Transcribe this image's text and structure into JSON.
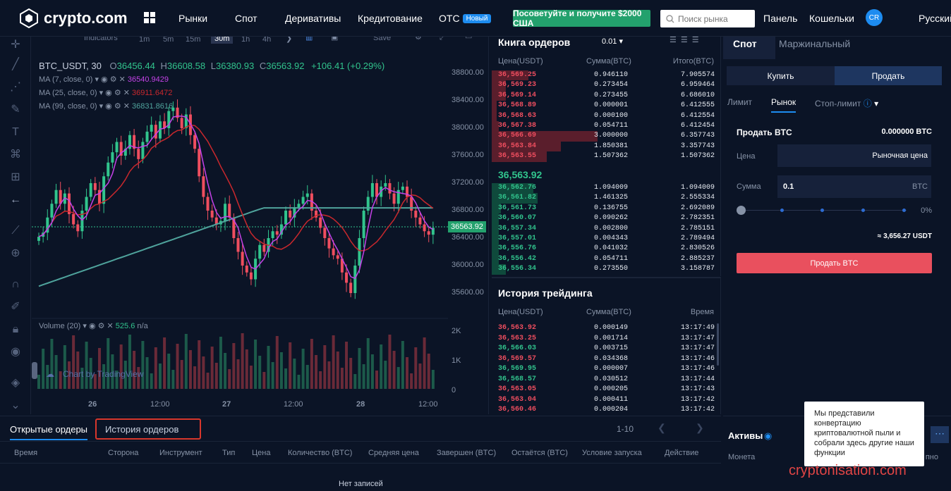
{
  "brand": {
    "name": "crypto.com"
  },
  "nav": {
    "items": [
      "Рынки",
      "Спот",
      "Деривативы",
      "Кредитование",
      "OTC"
    ],
    "otc_badge": "Новый",
    "promo": "Посоветуйте и получите $2000 США",
    "search_placeholder": "Поиск рынка",
    "dashboard": "Панель",
    "wallets": "Кошельки",
    "avatar": "CR",
    "language": "Русский"
  },
  "chart_toolbar": {
    "indicators": "Indicators",
    "intervals": [
      "1m",
      "5m",
      "15m",
      "30m",
      "1h",
      "4h"
    ],
    "save": "Save"
  },
  "chart_legend": {
    "symbol": "BTC_USDT, 30",
    "o_label": "O",
    "o": "36456.44",
    "h_label": "H",
    "h": "36608.58",
    "l_label": "L",
    "l": "36380.93",
    "c_label": "C",
    "c": "36563.92",
    "change": "+106.41 (+0.29%)",
    "ma7_label": "MA (7, close, 0)",
    "ma7": "36540.9429",
    "ma25_label": "MA (25, close, 0)",
    "ma25": "36911.6472",
    "ma99_label": "MA (99, close, 0)",
    "ma99": "36831.8616",
    "volume_label": "Volume (20)",
    "volume": "525.6",
    "volume_na": "n/a",
    "watermark": "Chart by TradingView"
  },
  "colors": {
    "up": "#31c48d",
    "down": "#ef4e5f",
    "ma7": "#c542e8",
    "ma25": "#c9282d",
    "ma99": "#4fa39c",
    "accent": "#1d8cf0"
  },
  "chart_data": {
    "type": "candlestick",
    "y_ticks": [
      "38800.00",
      "38400.00",
      "38000.00",
      "37600.00",
      "37200.00",
      "36800.00",
      "36400.00",
      "36000.00",
      "35600.00"
    ],
    "y_range": [
      35400,
      39000
    ],
    "x_ticks": [
      "26",
      "12:00",
      "27",
      "12:00",
      "28",
      "12:00"
    ],
    "volume_ticks": [
      "2K",
      "1K",
      "0"
    ],
    "last_price": "36563.92"
  },
  "orderbook": {
    "title": "Книга ордеров",
    "precision": "0.01",
    "headers": [
      "Цена(USDT)",
      "Сумма(BTC)",
      "Итого(BTC)"
    ],
    "asks": [
      {
        "p": "36,569.25",
        "a": "0.946110",
        "t": "7.905574",
        "d": 0.16
      },
      {
        "p": "36,569.23",
        "a": "0.273454",
        "t": "6.959464",
        "d": 0.06
      },
      {
        "p": "36,569.14",
        "a": "0.273455",
        "t": "6.686010",
        "d": 0.06
      },
      {
        "p": "36,568.89",
        "a": "0.000001",
        "t": "6.412555",
        "d": 0.02
      },
      {
        "p": "36,568.63",
        "a": "0.000100",
        "t": "6.412554",
        "d": 0.02
      },
      {
        "p": "36,567.38",
        "a": "0.054711",
        "t": "6.412454",
        "d": 0.03
      },
      {
        "p": "36,566.69",
        "a": "3.000000",
        "t": "6.357743",
        "d": 0.46
      },
      {
        "p": "36,563.84",
        "a": "1.850381",
        "t": "3.357743",
        "d": 0.3
      },
      {
        "p": "36,563.55",
        "a": "1.507362",
        "t": "1.507362",
        "d": 0.24
      }
    ],
    "mid": "36,563.92",
    "bids": [
      {
        "p": "36,562.76",
        "a": "1.094009",
        "t": "1.094009",
        "d": 0.18
      },
      {
        "p": "36,561.82",
        "a": "1.461325",
        "t": "2.555334",
        "d": 0.2
      },
      {
        "p": "36,561.73",
        "a": "0.136755",
        "t": "2.692089",
        "d": 0.04
      },
      {
        "p": "36,560.07",
        "a": "0.090262",
        "t": "2.782351",
        "d": 0.03
      },
      {
        "p": "36,557.34",
        "a": "0.002800",
        "t": "2.785151",
        "d": 0.03
      },
      {
        "p": "36,557.01",
        "a": "0.004343",
        "t": "2.789494",
        "d": 0.03
      },
      {
        "p": "36,556.76",
        "a": "0.041032",
        "t": "2.830526",
        "d": 0.03
      },
      {
        "p": "36,556.42",
        "a": "0.054711",
        "t": "2.885237",
        "d": 0.03
      },
      {
        "p": "36,556.34",
        "a": "0.273550",
        "t": "3.158787",
        "d": 0.06
      }
    ]
  },
  "trades": {
    "title": "История трейдинга",
    "headers": [
      "Цена(USDT)",
      "Сумма(BTC)",
      "Время"
    ],
    "rows": [
      {
        "p": "36,563.92",
        "a": "0.000149",
        "t": "13:17:49",
        "s": "down"
      },
      {
        "p": "36,563.25",
        "a": "0.001714",
        "t": "13:17:47",
        "s": "down"
      },
      {
        "p": "36,566.03",
        "a": "0.003715",
        "t": "13:17:47",
        "s": "up"
      },
      {
        "p": "36,569.57",
        "a": "0.034368",
        "t": "13:17:46",
        "s": "down"
      },
      {
        "p": "36,569.95",
        "a": "0.000007",
        "t": "13:17:46",
        "s": "up"
      },
      {
        "p": "36,568.57",
        "a": "0.030512",
        "t": "13:17:44",
        "s": "up"
      },
      {
        "p": "36,563.05",
        "a": "0.000205",
        "t": "13:17:43",
        "s": "down"
      },
      {
        "p": "36,563.04",
        "a": "0.000411",
        "t": "13:17:42",
        "s": "down"
      },
      {
        "p": "36,560.46",
        "a": "0.000204",
        "t": "13:17:42",
        "s": "down"
      }
    ]
  },
  "spot": {
    "tab_spot": "Спот",
    "tab_margin": "Маржинальный",
    "buy": "Купить",
    "sell": "Продать",
    "order_types": [
      "Лимит",
      "Рынок",
      "Стоп-лимит"
    ],
    "sell_label": "Продать BTC",
    "balance": "0.000000 BTC",
    "price_label": "Цена",
    "price_value": "Рыночная цена",
    "amount_label": "Сумма",
    "amount_value": "0.1",
    "amount_unit": "BTC",
    "slider_pct": "0%",
    "estimate": "≈ 3,656.27 USDT",
    "submit": "Продать BTC"
  },
  "bottom": {
    "tab_open": "Открытые ордеры",
    "tab_history": "История ордеров",
    "pagination": "1-10",
    "columns": [
      "Время",
      "Сторона",
      "Инструмент",
      "Тип",
      "Цена",
      "Количество (BTC)",
      "Средняя цена",
      "Завершен (BTC)",
      "Остаётся (BTC)",
      "Условие запуска",
      "Действие"
    ],
    "empty": "Нет записей"
  },
  "assets": {
    "title": "Активы",
    "coin_col": "Монета",
    "right_col": "пно"
  },
  "tooltip": {
    "text": "Мы представили конвертацию криптовалютной пыли и собрали здесь другие наши функции"
  },
  "watermark": {
    "text": "cryptonisation.com"
  }
}
